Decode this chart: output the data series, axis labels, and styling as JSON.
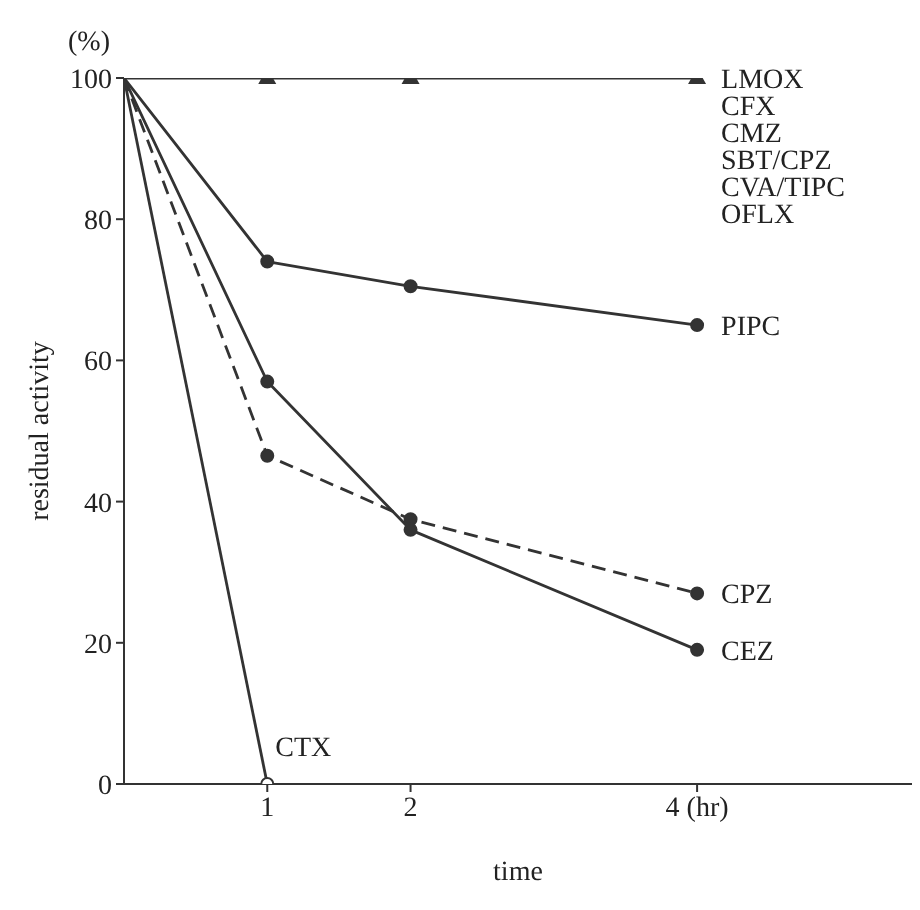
{
  "chart_data": {
    "type": "line",
    "xlabel": "time",
    "ylabel": "residual activity",
    "x": [
      0,
      1,
      2,
      4
    ],
    "xlim": [
      0,
      5.5
    ],
    "xticks": [
      1,
      2,
      {
        "value": 4,
        "label": "4 (hr)"
      }
    ],
    "ylim": [
      0,
      100
    ],
    "yticks": [
      0,
      20,
      40,
      60,
      80,
      100
    ],
    "grid": false,
    "legend": false,
    "line_style": "solid",
    "marker": "circle",
    "series": [
      {
        "name": "LMOX",
        "color": "#333333",
        "marker": "triangle",
        "values": [
          100,
          100,
          100,
          100
        ]
      },
      {
        "name": "PIPC",
        "color": "#333333",
        "values": [
          100,
          74,
          70.5,
          65
        ]
      },
      {
        "name": "CPZ",
        "color": "#333333",
        "line_style": "dashed",
        "values": [
          100,
          46.5,
          37.5,
          27
        ]
      },
      {
        "name": "CEZ",
        "color": "#333333",
        "values": [
          100,
          57,
          36,
          19
        ]
      },
      {
        "name": "CTX",
        "color": "#333333",
        "x": [
          0,
          1
        ],
        "values": [
          100,
          0
        ]
      }
    ],
    "annotations": [
      "(%)",
      "CFX",
      "CMZ",
      "SBT/CPZ",
      "CVA/TIPC",
      "OFLX"
    ]
  }
}
